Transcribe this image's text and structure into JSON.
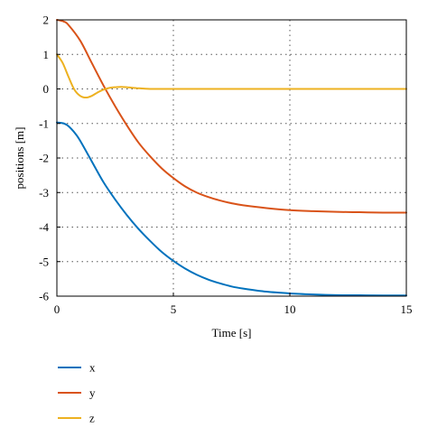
{
  "chart_data": {
    "type": "line",
    "title": "",
    "xlabel": "Time [s]",
    "ylabel": "positions [m]",
    "xlim": [
      0,
      15
    ],
    "ylim": [
      -6,
      2
    ],
    "xticks": [
      0,
      5,
      10,
      15
    ],
    "yticks": [
      2,
      1,
      0,
      -1,
      -2,
      -3,
      -4,
      -5,
      -6
    ],
    "grid": true,
    "legend_position": "bottom-left",
    "series": [
      {
        "name": "x",
        "color": "#0072BD",
        "x": [
          0,
          0.3,
          0.5,
          0.8,
          1,
          1.5,
          2,
          2.5,
          3,
          3.5,
          4,
          4.5,
          5,
          5.5,
          6,
          6.5,
          7,
          7.5,
          8,
          9,
          10,
          11,
          12,
          13,
          14,
          15
        ],
        "y": [
          -0.97,
          -1.0,
          -1.08,
          -1.3,
          -1.5,
          -2.1,
          -2.7,
          -3.2,
          -3.65,
          -4.05,
          -4.4,
          -4.72,
          -4.98,
          -5.2,
          -5.38,
          -5.52,
          -5.63,
          -5.72,
          -5.78,
          -5.87,
          -5.92,
          -5.95,
          -5.97,
          -5.975,
          -5.98,
          -5.98
        ]
      },
      {
        "name": "y",
        "color": "#D95319",
        "x": [
          0,
          0.3,
          0.5,
          1,
          1.5,
          2,
          2.5,
          3,
          3.5,
          4,
          4.5,
          5,
          5.5,
          6,
          6.5,
          7,
          7.5,
          8,
          9,
          10,
          11,
          12,
          13,
          14,
          15
        ],
        "y": [
          2.0,
          1.95,
          1.85,
          1.4,
          0.75,
          0.1,
          -0.5,
          -1.05,
          -1.55,
          -1.95,
          -2.3,
          -2.58,
          -2.82,
          -3.0,
          -3.13,
          -3.23,
          -3.31,
          -3.37,
          -3.45,
          -3.51,
          -3.54,
          -3.56,
          -3.57,
          -3.58,
          -3.58
        ]
      },
      {
        "name": "z",
        "color": "#EDB120",
        "x": [
          0,
          0.25,
          0.5,
          0.75,
          1,
          1.25,
          1.5,
          1.75,
          2,
          2.25,
          2.5,
          2.75,
          3,
          3.5,
          4,
          4.5,
          5,
          6,
          8,
          10,
          12,
          15
        ],
        "y": [
          1.0,
          0.75,
          0.35,
          -0.02,
          -0.2,
          -0.25,
          -0.2,
          -0.1,
          -0.02,
          0.03,
          0.05,
          0.06,
          0.05,
          0.02,
          0.0,
          0.0,
          0.0,
          0.0,
          0.0,
          0.0,
          0.0,
          0.0
        ]
      }
    ]
  }
}
